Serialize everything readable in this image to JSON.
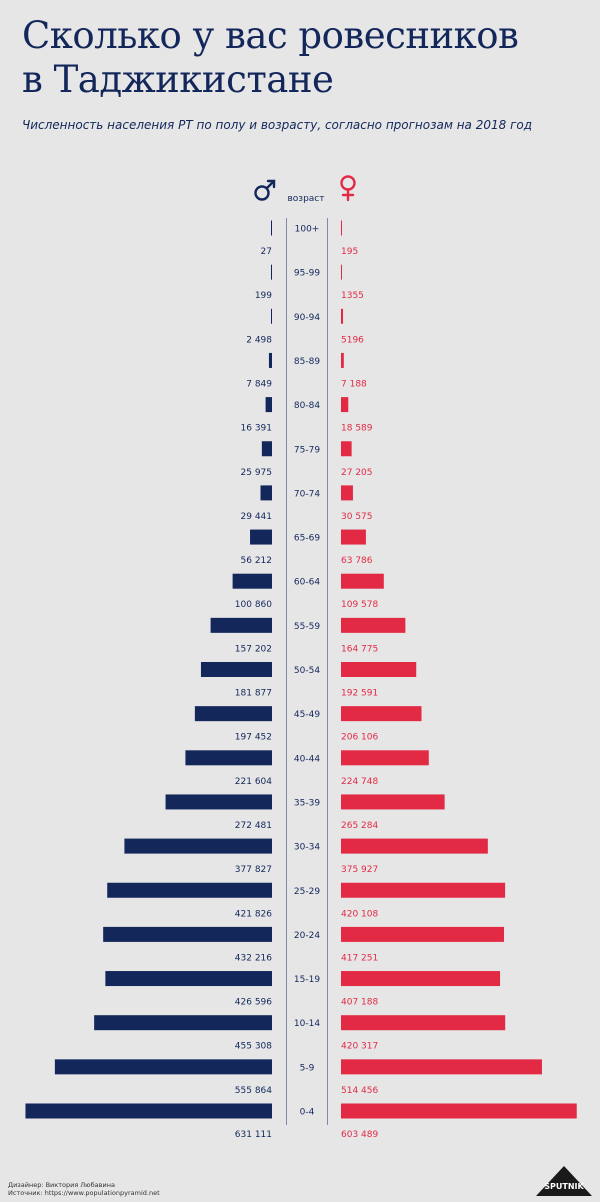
{
  "header": {
    "title_line1": "Сколько у вас ровесников",
    "title_line2": "в Таджикистане",
    "subtitle": "Численность населения РТ по полу и возрасту, согласно прогнозам на 2018 год"
  },
  "footer": {
    "designer": "Дизайнер: Виктория Любавина",
    "source": "Источник:  https://www.populationpyramid.net",
    "logo_text": "SPUTNIK"
  },
  "colors": {
    "male": "#13275b",
    "female": "#e32a45",
    "text": "#13275b",
    "background": "#e6e6e6"
  },
  "icons": {
    "male": "male-symbol-icon",
    "female": "female-symbol-icon"
  },
  "chart_data": {
    "type": "bar",
    "orientation": "horizontal-population-pyramid",
    "center_label": "возраст",
    "categories": [
      "100+",
      "95-99",
      "90-94",
      "85-89",
      "80-84",
      "75-79",
      "70-74",
      "65-69",
      "60-64",
      "55-59",
      "50-54",
      "45-49",
      "40-44",
      "35-39",
      "30-34",
      "25-29",
      "20-24",
      "15-19",
      "10-14",
      "5-9",
      "0-4"
    ],
    "series": [
      {
        "name": "♂",
        "values": [
          27,
          199,
          2498,
          7849,
          16391,
          25975,
          29441,
          56212,
          100860,
          157202,
          181877,
          197452,
          221604,
          272481,
          377827,
          421826,
          432216,
          426596,
          455308,
          555864,
          631111
        ]
      },
      {
        "name": "♀",
        "values": [
          195,
          1355,
          5196,
          7188,
          18589,
          27205,
          30575,
          63786,
          109578,
          164775,
          192591,
          206106,
          224748,
          265284,
          375927,
          420108,
          417251,
          407188,
          420317,
          514456,
          603489
        ]
      }
    ],
    "value_labels": {
      "male": [
        "27",
        "199",
        "2 498",
        "7 849",
        "16 391",
        "25 975",
        "29 441",
        "56 212",
        "100 860",
        "157 202",
        "181 877",
        "197 452",
        "221 604",
        "272 481",
        "377 827",
        "421 826",
        "432 216",
        "426 596",
        "455 308",
        "555 864",
        "631 111"
      ],
      "female": [
        "195",
        "1355",
        "5196",
        "7 188",
        "18 589",
        "27 205",
        "30 575",
        "63 786",
        "109 578",
        "164 775",
        "192 591",
        "206 106",
        "224 748",
        "265 284",
        "375 927",
        "420 108",
        "417 251",
        "407 188",
        "420 317",
        "514 456",
        "603 489"
      ]
    },
    "xlim": [
      0,
      640000
    ],
    "grid": false,
    "legend": "top-center"
  }
}
